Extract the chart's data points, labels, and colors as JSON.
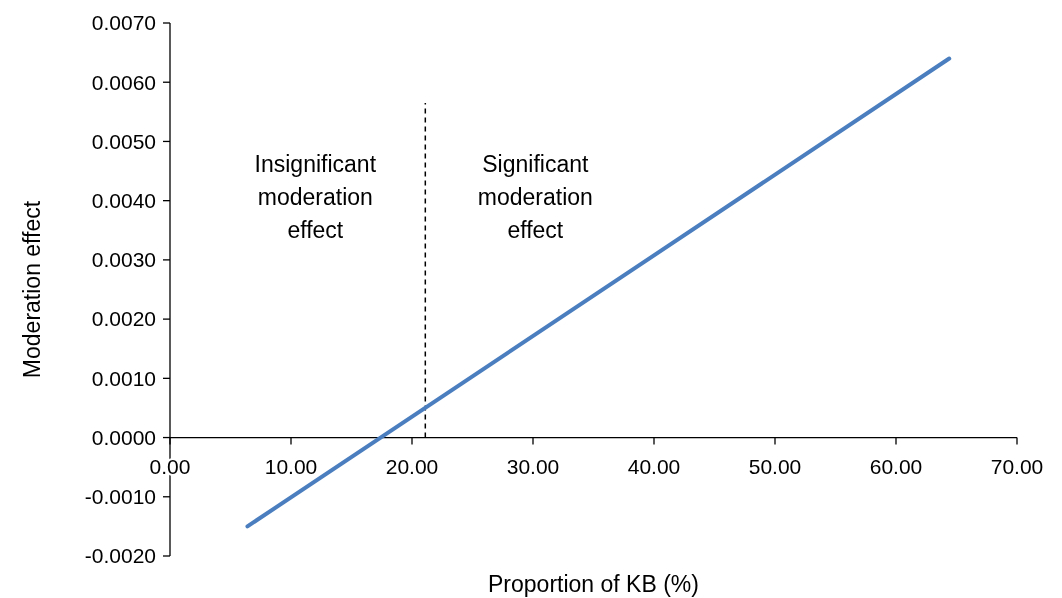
{
  "chart_data": {
    "type": "line",
    "xlabel": "Proportion of KB (%)",
    "ylabel": "Moderation effect",
    "x": [
      6.4,
      64.4
    ],
    "series": [
      {
        "color": "#4a7ebf",
        "values": [
          -0.0015,
          0.0064
        ]
      }
    ],
    "xlim": [
      0,
      70
    ],
    "ylim": [
      -0.002,
      0.007
    ],
    "xticks": [
      {
        "value": 0,
        "label": "0.00"
      },
      {
        "value": 10,
        "label": "10.00"
      },
      {
        "value": 20,
        "label": "20.00"
      },
      {
        "value": 30,
        "label": "30.00"
      },
      {
        "value": 40,
        "label": "40.00"
      },
      {
        "value": 50,
        "label": "50.00"
      },
      {
        "value": 60,
        "label": "60.00"
      },
      {
        "value": 70,
        "label": "70.00"
      }
    ],
    "yticks": [
      {
        "value": -0.002,
        "label": "-0.0020"
      },
      {
        "value": -0.001,
        "label": "-0.0010"
      },
      {
        "value": 0,
        "label": "0.0000"
      },
      {
        "value": 0.001,
        "label": "0.0010"
      },
      {
        "value": 0.002,
        "label": "0.0020"
      },
      {
        "value": 0.003,
        "label": "0.0030"
      },
      {
        "value": 0.004,
        "label": "0.0040"
      },
      {
        "value": 0.005,
        "label": "0.0050"
      },
      {
        "value": 0.006,
        "label": "0.0060"
      },
      {
        "value": 0.007,
        "label": "0.0070"
      }
    ],
    "ref_lines": [
      {
        "axis": "x",
        "value": 21.1,
        "color": "#000000",
        "line_style": "dashed"
      }
    ],
    "annotations": [
      "Insignificant moderation effect",
      "Significant moderation effect"
    ],
    "grid": false,
    "marker": "none",
    "line_style": "solid"
  }
}
